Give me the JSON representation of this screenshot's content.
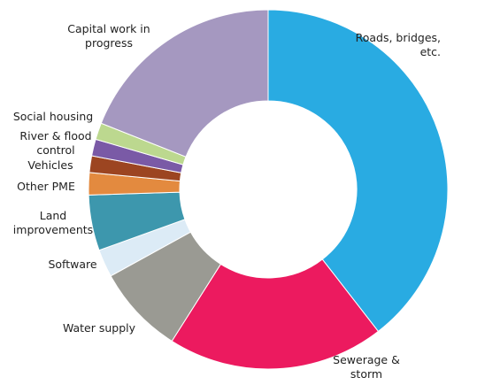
{
  "chart_data": {
    "type": "pie",
    "donut": true,
    "title": "",
    "legend": "none (direct labels)",
    "categories": [
      "Roads, bridges, etc.",
      "Sewerage & storm",
      "Water supply",
      "Software",
      "Land improvements",
      "Other PME",
      "Vehicles",
      "River & flood control",
      "Social housing",
      "Capital work in progress"
    ],
    "values": [
      39.5,
      19.5,
      8.0,
      2.5,
      5.0,
      2.0,
      1.5,
      1.5,
      1.5,
      19.0
    ],
    "colors": [
      "#29abe2",
      "#ec1a5f",
      "#9a9a93",
      "#dcebf6",
      "#3d97ad",
      "#e38a3f",
      "#9c4521",
      "#7a5aa6",
      "#bcd88f",
      "#a598c0"
    ],
    "labels": [
      [
        "Roads, bridges,",
        "etc."
      ],
      [
        "Sewerage &",
        "storm"
      ],
      [
        "Water supply"
      ],
      [
        "Software"
      ],
      [
        "Land",
        "improvements"
      ],
      [
        "Other PME"
      ],
      [
        "Vehicles"
      ],
      [
        "River & flood",
        "control"
      ],
      [
        "Social housing"
      ],
      [
        "Capital work in",
        "progress"
      ]
    ]
  }
}
